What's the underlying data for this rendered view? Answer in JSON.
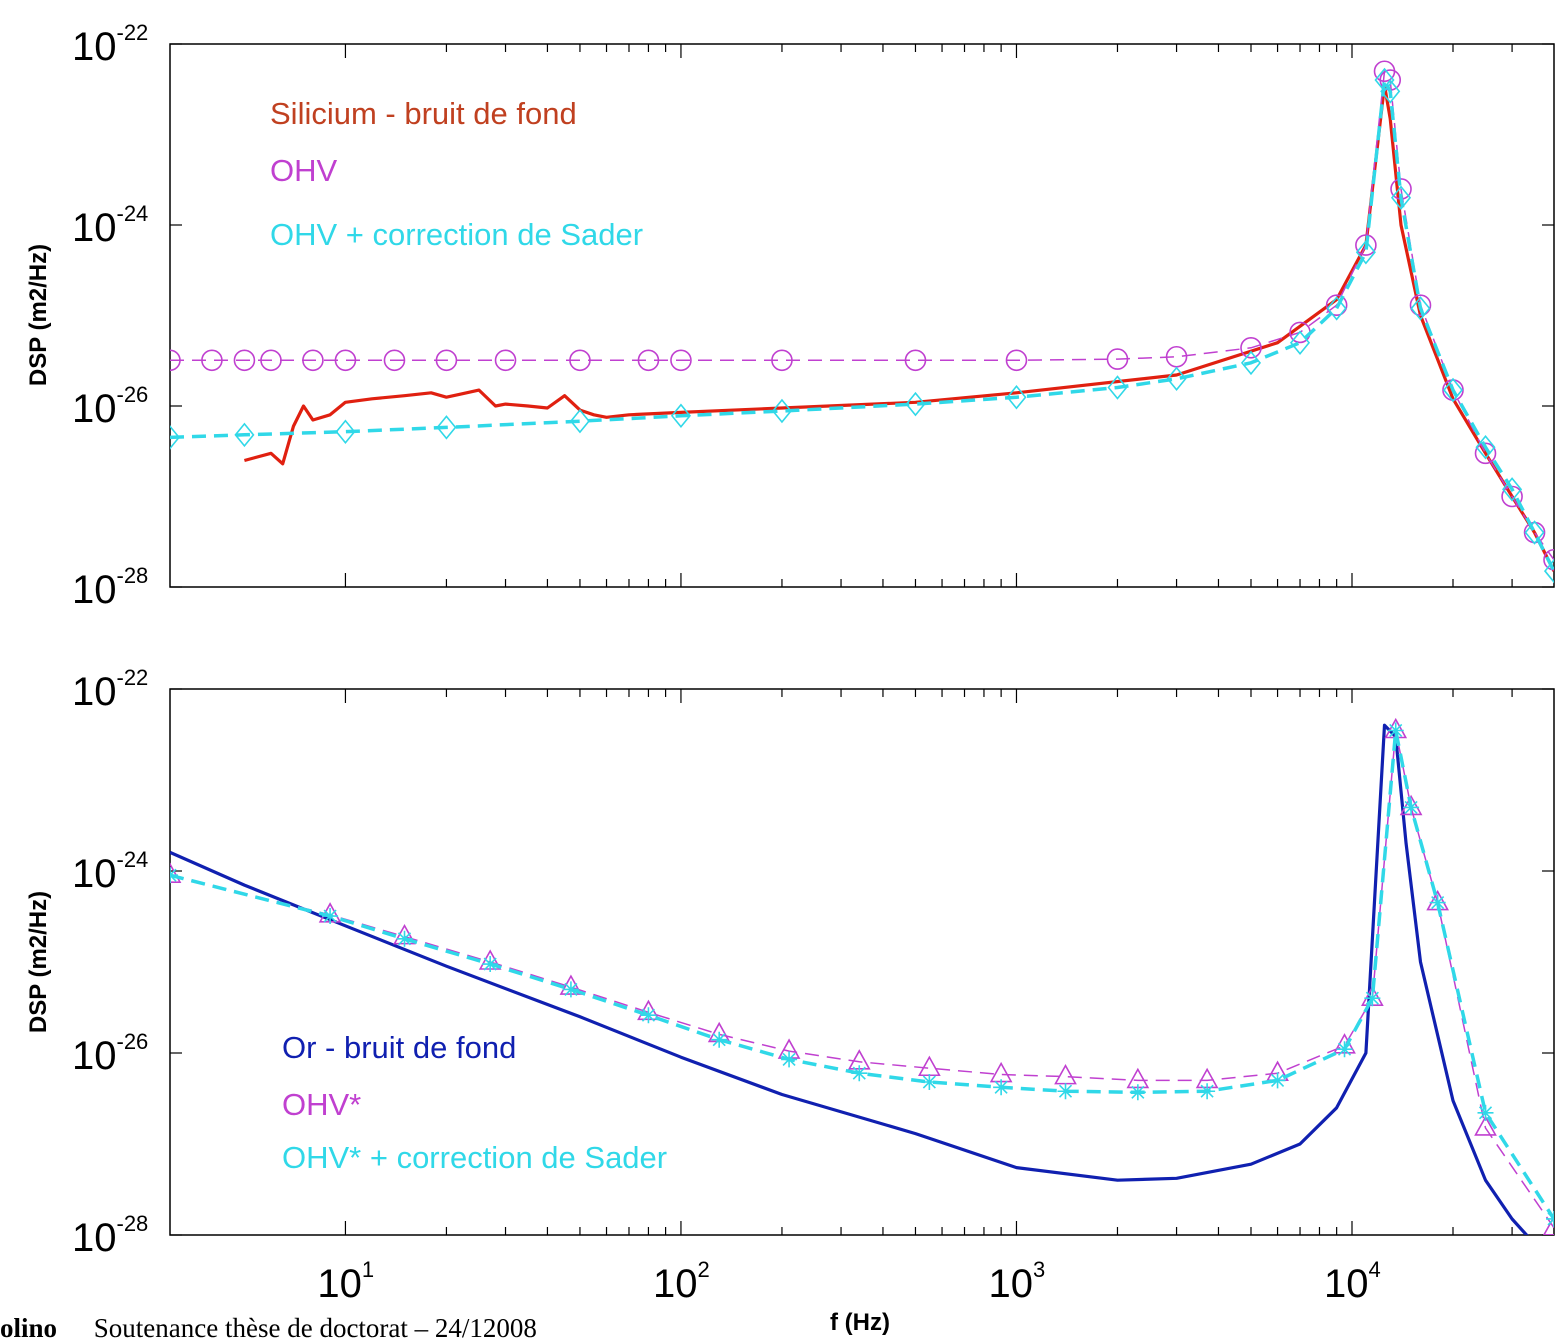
{
  "footer": {
    "author": "olino",
    "text": "Soutenance thèse de doctorat – 24/12008"
  },
  "colors": {
    "silicium": "#e02010",
    "ohv": "#c040d0",
    "sader": "#30d8e8",
    "or": "#1020b0"
  },
  "chart_data": [
    {
      "type": "line",
      "log_x": true,
      "log_y": true,
      "xlim": [
        3,
        40000
      ],
      "ylim": [
        1e-28,
        1e-22
      ],
      "ylabel": "DSP (m2/Hz)",
      "xlabel": "",
      "y_ticks": [
        {
          "base": "10",
          "exp": "-22"
        },
        {
          "base": "10",
          "exp": "-24"
        },
        {
          "base": "10",
          "exp": "-26"
        },
        {
          "base": "10",
          "exp": "-28"
        }
      ],
      "x_tick_labels_shown": false,
      "legend_placement": "top-left",
      "series": [
        {
          "name": "Silicium - bruit de fond",
          "color": "#e02010",
          "style": "solid",
          "x": [
            5,
            6,
            6.5,
            7,
            7.5,
            8,
            9,
            10,
            12,
            15,
            18,
            20,
            22,
            25,
            28,
            30,
            35,
            40,
            45,
            50,
            55,
            60,
            70,
            100,
            200,
            500,
            1000,
            3000,
            6000,
            9000,
            11000,
            12500,
            13000,
            14000,
            16000,
            20000,
            25000,
            30000,
            35000,
            40000
          ],
          "y": [
            2.5e-27,
            3e-27,
            2.3e-27,
            6e-27,
            1e-26,
            7e-27,
            8e-27,
            1.1e-26,
            1.2e-26,
            1.3e-26,
            1.4e-26,
            1.25e-26,
            1.35e-26,
            1.5e-26,
            1e-26,
            1.05e-26,
            1e-26,
            9.5e-27,
            1.3e-26,
            9e-27,
            8e-27,
            7.5e-27,
            8e-27,
            8.5e-27,
            9.5e-27,
            1.1e-26,
            1.4e-26,
            2.2e-26,
            5e-26,
            1.5e-25,
            6e-25,
            3.5e-23,
            1.5e-23,
            1e-24,
            1e-25,
            1.2e-26,
            3e-27,
            1e-27,
            4e-28,
            1.5e-28
          ]
        },
        {
          "name": "OHV",
          "color": "#c040d0",
          "style": "dashed",
          "marker": "circle",
          "x": [
            3,
            4,
            5,
            6,
            8,
            10,
            14,
            20,
            30,
            50,
            80,
            100,
            200,
            500,
            1000,
            2000,
            3000,
            5000,
            7000,
            9000,
            11000,
            12500,
            13000,
            14000,
            16000,
            20000,
            25000,
            30000,
            35000,
            40000
          ],
          "y": [
            3.2e-26,
            3.2e-26,
            3.2e-26,
            3.2e-26,
            3.2e-26,
            3.2e-26,
            3.2e-26,
            3.2e-26,
            3.2e-26,
            3.2e-26,
            3.2e-26,
            3.2e-26,
            3.2e-26,
            3.2e-26,
            3.2e-26,
            3.3e-26,
            3.5e-26,
            4.4e-26,
            6.5e-26,
            1.3e-25,
            6e-25,
            5e-23,
            4e-23,
            2.5e-24,
            1.3e-25,
            1.5e-26,
            3e-27,
            1e-27,
            4e-28,
            2e-28
          ]
        },
        {
          "name": "OHV + correction de Sader",
          "color": "#30d8e8",
          "style": "dashed",
          "marker": "diamond",
          "x": [
            3,
            5,
            10,
            20,
            50,
            100,
            200,
            500,
            1000,
            2000,
            3000,
            5000,
            7000,
            9000,
            11000,
            12500,
            13000,
            14000,
            16000,
            20000,
            25000,
            30000,
            35000,
            40000
          ],
          "y": [
            4.5e-27,
            4.8e-27,
            5.2e-27,
            5.8e-27,
            6.8e-27,
            7.8e-27,
            8.8e-27,
            1.05e-26,
            1.25e-26,
            1.6e-26,
            2e-26,
            3e-26,
            5e-26,
            1.2e-25,
            5e-25,
            4e-23,
            3e-23,
            2e-24,
            1.2e-25,
            1.5e-26,
            3.5e-27,
            1.2e-27,
            4e-28,
            1.5e-28
          ]
        }
      ]
    },
    {
      "type": "line",
      "log_x": true,
      "log_y": true,
      "xlim": [
        3,
        40000
      ],
      "ylim": [
        1e-28,
        1e-22
      ],
      "ylabel": "DSP (m2/Hz)",
      "xlabel": "f (Hz)",
      "y_ticks": [
        {
          "base": "10",
          "exp": "-22"
        },
        {
          "base": "10",
          "exp": "-24"
        },
        {
          "base": "10",
          "exp": "-26"
        },
        {
          "base": "10",
          "exp": "-28"
        }
      ],
      "x_ticks": [
        {
          "value": 10,
          "base": "10",
          "exp": "1"
        },
        {
          "value": 100,
          "base": "10",
          "exp": "2"
        },
        {
          "value": 1000,
          "base": "10",
          "exp": "3"
        },
        {
          "value": 10000,
          "base": "10",
          "exp": "4"
        }
      ],
      "legend_placement": "bottom-left",
      "series": [
        {
          "name": "Or - bruit de fond",
          "color": "#1020b0",
          "style": "solid",
          "x": [
            3,
            5,
            10,
            20,
            50,
            100,
            200,
            500,
            1000,
            2000,
            3000,
            5000,
            7000,
            9000,
            11000,
            12500,
            13500,
            14500,
            16000,
            20000,
            25000,
            30000,
            35000,
            40000
          ],
          "y": [
            1.6e-24,
            7e-25,
            2.5e-25,
            9e-26,
            2.5e-26,
            9e-27,
            3.5e-27,
            1.3e-27,
            5.5e-28,
            4e-28,
            4.2e-28,
            6e-28,
            1e-27,
            2.5e-27,
            1e-26,
            4e-23,
            3e-23,
            2e-24,
            1e-25,
            3e-27,
            4e-28,
            1.5e-28,
            8e-29,
            5e-29
          ]
        },
        {
          "name": "OHV*",
          "color": "#c040d0",
          "style": "dashed",
          "marker": "triangle",
          "x": [
            3,
            9,
            15,
            27,
            47,
            80,
            130,
            210,
            340,
            550,
            900,
            1400,
            2300,
            3700,
            6000,
            9500,
            11500,
            13500,
            15000,
            18000,
            25000,
            40000
          ],
          "y": [
            9e-25,
            3.3e-25,
            1.9e-25,
            1e-25,
            5.3e-26,
            2.8e-26,
            1.6e-26,
            1.05e-26,
            8e-27,
            6.8e-27,
            5.8e-27,
            5.5e-27,
            5e-27,
            5e-27,
            6e-27,
            1.2e-26,
            4e-26,
            3.5e-23,
            5e-24,
            4.5e-25,
            1.5e-27,
            1.2e-28
          ]
        },
        {
          "name": "OHV* + correction de Sader",
          "color": "#30d8e8",
          "style": "dashed",
          "marker": "asterisk",
          "x": [
            3,
            9,
            15,
            27,
            47,
            80,
            130,
            210,
            340,
            550,
            900,
            1400,
            2300,
            3700,
            6000,
            9500,
            11500,
            13500,
            15000,
            18000,
            25000,
            40000
          ],
          "y": [
            9e-25,
            3.2e-25,
            1.8e-25,
            9.5e-26,
            5e-26,
            2.6e-26,
            1.4e-26,
            8.5e-27,
            6e-27,
            4.8e-27,
            4.2e-27,
            3.8e-27,
            3.7e-27,
            3.8e-27,
            5e-27,
            1.1e-26,
            4e-26,
            3.5e-23,
            5e-24,
            4.5e-25,
            2.2e-27,
            1.5e-28
          ]
        }
      ]
    }
  ]
}
